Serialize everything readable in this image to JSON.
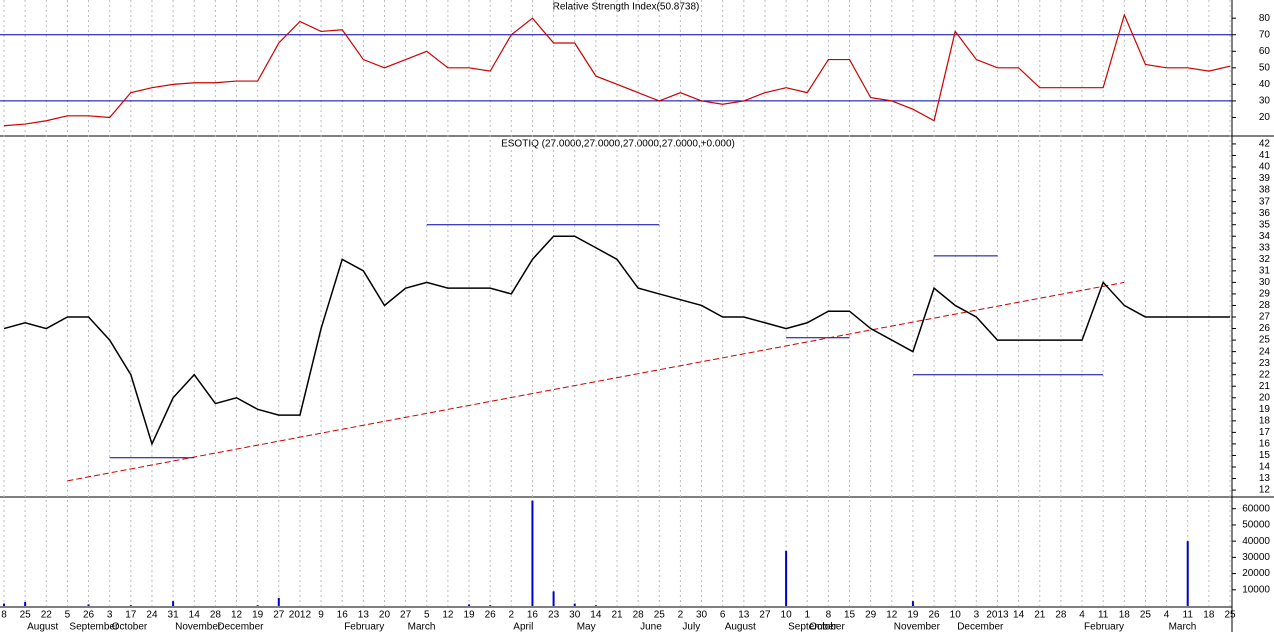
{
  "chart_data": [
    {
      "type": "line",
      "title": "Relative Strength Index(50.8738)",
      "color": "#cc0000",
      "values": [
        15,
        16,
        18,
        21,
        21,
        20,
        35,
        38,
        40,
        41,
        41,
        42,
        42,
        65,
        78,
        72,
        73,
        55,
        50,
        55,
        60,
        50,
        50,
        48,
        70,
        80,
        65,
        65,
        45,
        40,
        35,
        30,
        35,
        30,
        28,
        30,
        35,
        38,
        35,
        55,
        55,
        32,
        30,
        25,
        18,
        72,
        55,
        50,
        50,
        38,
        38,
        38,
        38,
        82,
        52,
        50,
        50,
        48,
        51
      ],
      "ylim": [
        10,
        91
      ],
      "yticks": [
        20,
        30,
        40,
        50,
        60,
        70,
        80
      ],
      "levels": [
        30,
        70
      ],
      "level_color": "#0000aa"
    },
    {
      "type": "line",
      "title": "ESOTIQ (27.0000,27.0000,27.0000,27.0000,+0.000)",
      "color": "#000000",
      "values": [
        26,
        26.5,
        26,
        27,
        27,
        25,
        22,
        16,
        20,
        22,
        19.5,
        20,
        19,
        18.5,
        18.5,
        26,
        32,
        31,
        28,
        29.5,
        30,
        29.5,
        29.5,
        29.5,
        29,
        32,
        34,
        34,
        33,
        32,
        29.5,
        29,
        28.5,
        28,
        27,
        27,
        26.5,
        26,
        26.5,
        27.5,
        27.5,
        26,
        25,
        24,
        29.5,
        28,
        27,
        25,
        25,
        25,
        25,
        25,
        30,
        28,
        27,
        27,
        27,
        27,
        27
      ],
      "ylim": [
        11.4,
        42.6
      ],
      "yticks": [
        12,
        13,
        14,
        15,
        16,
        17,
        18,
        19,
        20,
        21,
        22,
        23,
        24,
        25,
        26,
        27,
        28,
        29,
        30,
        31,
        32,
        33,
        34,
        35,
        36,
        37,
        38,
        39,
        40,
        41,
        42
      ],
      "trendline": [
        12.8,
        30
      ],
      "trend_color": "#cc0000",
      "levels": [
        14.8,
        35,
        25.2,
        32.3,
        22
      ],
      "level_color": "#0000aa"
    },
    {
      "type": "bar",
      "color": "#0000cc",
      "categories": [
        "8",
        "25",
        "22",
        "5",
        "26",
        "3",
        "17",
        "24",
        "31",
        "14",
        "28",
        "12",
        "19",
        "27",
        "2012",
        "9",
        "16",
        "13",
        "20",
        "27",
        "5",
        "12",
        "19",
        "26",
        "2",
        "16",
        "23",
        "30",
        "14",
        "21",
        "28",
        "25",
        "2",
        "30",
        "6",
        "13",
        "27",
        "10",
        "1",
        "8",
        "15",
        "29",
        "12",
        "19",
        "26",
        "10",
        "3",
        "2013",
        "14",
        "21",
        "28",
        "4",
        "11",
        "18",
        "25",
        "4",
        "11",
        "18",
        "25"
      ],
      "month_labels": [
        null,
        "August",
        null,
        "September",
        null,
        "October",
        null,
        null,
        "November",
        null,
        "December",
        null,
        null,
        null,
        null,
        null,
        "February",
        null,
        null,
        "March",
        null,
        null,
        null,
        null,
        "April",
        null,
        null,
        "May",
        null,
        null,
        "June",
        null,
        "July",
        null,
        "August",
        null,
        null,
        "September",
        "October",
        null,
        null,
        null,
        "November",
        null,
        null,
        "December",
        null,
        null,
        null,
        null,
        null,
        "February",
        null,
        null,
        null,
        "March",
        null,
        null,
        null
      ],
      "values": [
        1500,
        2500,
        0,
        0,
        1000,
        0,
        500,
        0,
        3000,
        0,
        0,
        0,
        500,
        5000,
        0,
        0,
        0,
        0,
        0,
        0,
        0,
        0,
        1000,
        500,
        0,
        65000,
        9000,
        1500,
        500,
        0,
        0,
        0,
        0,
        0,
        0,
        0,
        0,
        34000,
        0,
        0,
        0,
        0,
        0,
        3000,
        0,
        0,
        0,
        0,
        0,
        0,
        0,
        0,
        0,
        0,
        0,
        0,
        40000,
        0,
        0
      ],
      "ylim": [
        0,
        66000
      ],
      "yticks": [
        10000,
        20000,
        30000,
        40000,
        50000,
        60000
      ]
    }
  ]
}
